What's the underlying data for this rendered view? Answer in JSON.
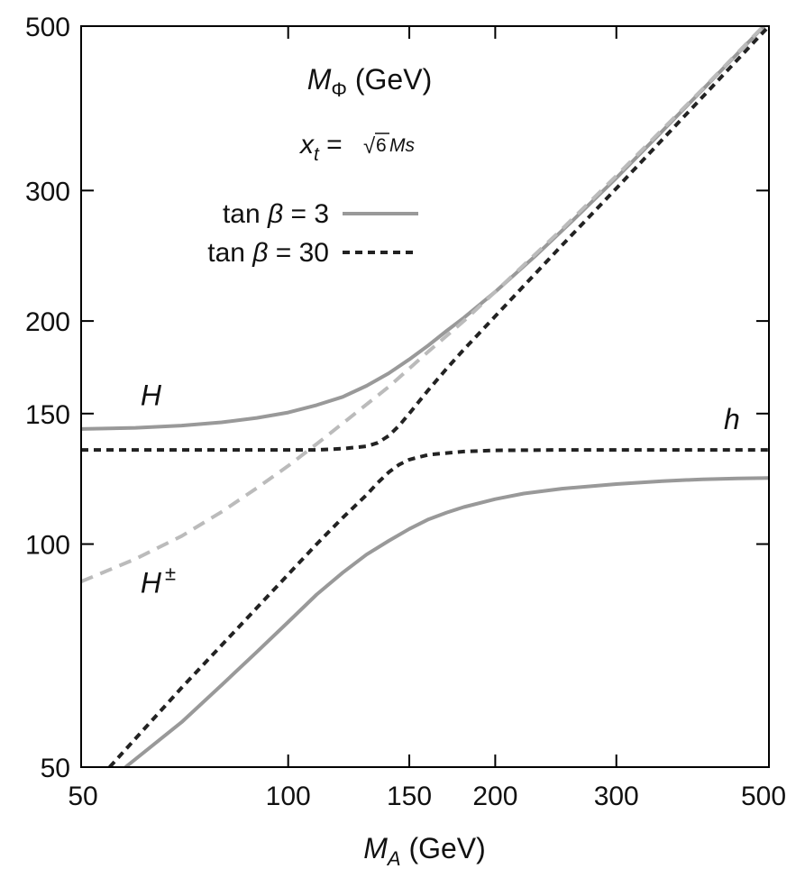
{
  "chart_data": {
    "type": "line",
    "x_scale": "log",
    "y_scale": "log",
    "xlim": [
      50,
      500
    ],
    "ylim": [
      50,
      500
    ],
    "x_ticks": [
      50,
      100,
      150,
      200,
      300,
      500
    ],
    "y_ticks": [
      50,
      100,
      150,
      200,
      300,
      500
    ],
    "x_tick_labels": [
      "50",
      "100",
      "150",
      "200",
      "300",
      "500"
    ],
    "y_tick_labels": [
      "50",
      "100",
      "150",
      "200",
      "300",
      "500"
    ],
    "xlabel": {
      "main": "M",
      "sub": "A",
      "unit": " (GeV)"
    },
    "inner_title": {
      "main": "M",
      "sub": "Φ",
      "unit": " (GeV)"
    },
    "condition": {
      "var": "x",
      "sub": "t",
      "eq": " = ",
      "root": "√",
      "root_arg": "6",
      "rest": "Ms"
    },
    "legend": [
      {
        "prefix": "tan ",
        "symbol": "β",
        "suffix": " = 3",
        "style": "solid",
        "color": "#999999"
      },
      {
        "prefix": "tan ",
        "symbol": "β",
        "suffix": " = 30",
        "style": "dashed",
        "color": "#222222"
      }
    ],
    "curve_labels": [
      {
        "text": "H",
        "sup": "",
        "anchor": [
          61,
          154
        ]
      },
      {
        "text": "h",
        "sup": "",
        "anchor": [
          430,
          143
        ]
      },
      {
        "text": "H",
        "sup": "±",
        "anchor": [
          61,
          86
        ]
      }
    ],
    "series": [
      {
        "name": "H",
        "group": "tan β = 3",
        "style": "solid",
        "color": "#999999",
        "x": [
          50,
          60,
          70,
          80,
          90,
          100,
          110,
          120,
          130,
          140,
          150,
          160,
          170,
          180,
          200,
          230,
          260,
          300,
          350,
          400,
          450,
          500
        ],
        "y": [
          143,
          143.5,
          144.5,
          146,
          148,
          150.5,
          154,
          158,
          163.5,
          170,
          177.5,
          185.5,
          194,
          202,
          219,
          246,
          274,
          312,
          361,
          410,
          459,
          508
        ]
      },
      {
        "name": "h",
        "group": "tan β = 3",
        "style": "solid",
        "color": "#999999",
        "x": [
          58,
          70,
          80,
          90,
          100,
          110,
          120,
          130,
          140,
          150,
          160,
          170,
          180,
          200,
          220,
          250,
          300,
          350,
          400,
          450,
          500
        ],
        "y": [
          50,
          57.5,
          64.5,
          71.5,
          78.5,
          85.5,
          91.5,
          96.8,
          101,
          104.8,
          108,
          110.3,
          112.2,
          115,
          117,
          118.8,
          120.5,
          121.6,
          122.3,
          122.6,
          122.8
        ]
      },
      {
        "name": "H",
        "group": "tan β = 30",
        "style": "dashed",
        "color": "#222222",
        "x": [
          50,
          70,
          90,
          110,
          120,
          130,
          135,
          140,
          145,
          150,
          155,
          160,
          170,
          180,
          200,
          250,
          300,
          400,
          500
        ],
        "y": [
          134,
          134,
          134,
          134,
          134.5,
          135.5,
          137,
          140,
          144.5,
          150,
          155.8,
          161.5,
          172.5,
          183,
          203,
          253,
          302,
          401,
          500
        ]
      },
      {
        "name": "h",
        "group": "tan β = 30",
        "style": "dashed",
        "color": "#222222",
        "x": [
          55,
          70,
          90,
          110,
          120,
          130,
          135,
          140,
          145,
          150,
          160,
          180,
          200,
          250,
          300,
          400,
          500
        ],
        "y": [
          50,
          64,
          82,
          100,
          108.5,
          116.5,
          121,
          125,
          128,
          130,
          132,
          133.3,
          133.8,
          134,
          134,
          134,
          134
        ]
      },
      {
        "name": "H±",
        "group": "tan β = 3",
        "style": "dashed",
        "color": "#bbbbbb",
        "x": [
          50,
          60,
          70,
          80,
          90,
          100,
          110,
          120,
          140,
          160,
          180,
          200,
          250,
          300,
          400,
          500
        ],
        "y": [
          89,
          95.5,
          102.5,
          110.5,
          119,
          127.5,
          136.5,
          145.5,
          163,
          182,
          200,
          219,
          266,
          314,
          411,
          509
        ]
      }
    ]
  }
}
